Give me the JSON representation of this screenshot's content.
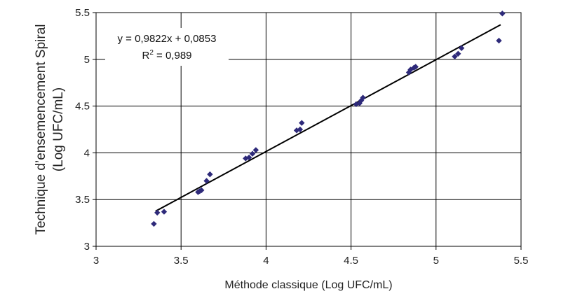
{
  "chart_data": {
    "type": "scatter",
    "title": "",
    "xlabel": "Méthode classique (Log UFC/mL)",
    "ylabel_line1": "Technique d’ensemencement Spiral",
    "ylabel_line2": "(Log UFC/mL)",
    "xlim": [
      3,
      5.5
    ],
    "ylim": [
      3,
      5.5
    ],
    "x_ticks": [
      "3",
      "3.5",
      "4",
      "4.5",
      "5",
      "5.5"
    ],
    "y_ticks": [
      "3",
      "3.5",
      "4",
      "4.5",
      "5",
      "5.5"
    ],
    "grid": true,
    "legend": "none",
    "marker_color": "#2e2a7a",
    "line_color": "#000000",
    "annotation": {
      "equation": "y = 0,9822x + 0,0853",
      "r2_prefix": "R",
      "r2_sup": "2",
      "r2_value": " = 0,989"
    },
    "trendline": {
      "slope": 0.9822,
      "intercept": 0.0853,
      "x_start": 3.35,
      "x_end": 5.38
    },
    "points": [
      {
        "x": 3.34,
        "y": 3.24
      },
      {
        "x": 3.36,
        "y": 3.36
      },
      {
        "x": 3.4,
        "y": 3.37
      },
      {
        "x": 3.6,
        "y": 3.58
      },
      {
        "x": 3.61,
        "y": 3.59
      },
      {
        "x": 3.62,
        "y": 3.6
      },
      {
        "x": 3.65,
        "y": 3.7
      },
      {
        "x": 3.67,
        "y": 3.77
      },
      {
        "x": 3.88,
        "y": 3.94
      },
      {
        "x": 3.9,
        "y": 3.95
      },
      {
        "x": 3.92,
        "y": 3.99
      },
      {
        "x": 3.94,
        "y": 4.03
      },
      {
        "x": 4.18,
        "y": 4.24
      },
      {
        "x": 4.2,
        "y": 4.25
      },
      {
        "x": 4.21,
        "y": 4.32
      },
      {
        "x": 4.53,
        "y": 4.52
      },
      {
        "x": 4.55,
        "y": 4.53
      },
      {
        "x": 4.56,
        "y": 4.56
      },
      {
        "x": 4.57,
        "y": 4.59
      },
      {
        "x": 4.84,
        "y": 4.86
      },
      {
        "x": 4.85,
        "y": 4.89
      },
      {
        "x": 4.87,
        "y": 4.91
      },
      {
        "x": 4.88,
        "y": 4.92
      },
      {
        "x": 5.11,
        "y": 5.03
      },
      {
        "x": 5.13,
        "y": 5.06
      },
      {
        "x": 5.15,
        "y": 5.12
      },
      {
        "x": 5.37,
        "y": 5.2
      },
      {
        "x": 5.39,
        "y": 5.49
      }
    ]
  }
}
